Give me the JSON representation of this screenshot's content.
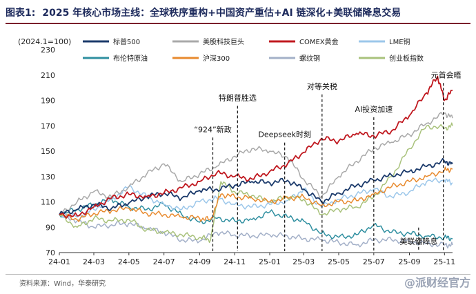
{
  "header": {
    "label": "图表1:",
    "title": "2025 年核心市场主线：全球秩序重构+中国资产重估+AI 链深化+美联储降息交易"
  },
  "source": "资料来源：Wind，华泰研究",
  "watermark": "@派财经官方",
  "chart_data": {
    "type": "line",
    "ylabel": "(2024.1=100)",
    "ylim": [
      70,
      230
    ],
    "yticks": [
      70,
      90,
      110,
      130,
      150,
      170,
      190,
      210,
      230
    ],
    "xlim": [
      "2024-01-01",
      "2025-11-15"
    ],
    "xticks": [
      {
        "label": "24-01",
        "date": "2024-01-01"
      },
      {
        "label": "24-03",
        "date": "2024-03-01"
      },
      {
        "label": "24-05",
        "date": "2024-05-01"
      },
      {
        "label": "24-07",
        "date": "2024-07-01"
      },
      {
        "label": "24-09",
        "date": "2024-09-01"
      },
      {
        "label": "24-11",
        "date": "2024-11-01"
      },
      {
        "label": "25-01",
        "date": "2025-01-01"
      },
      {
        "label": "25-03",
        "date": "2025-03-01"
      },
      {
        "label": "25-05",
        "date": "2025-05-01"
      },
      {
        "label": "25-07",
        "date": "2025-07-01"
      },
      {
        "label": "25-09",
        "date": "2025-09-01"
      },
      {
        "label": "25-11",
        "date": "2025-11-01"
      }
    ],
    "series": [
      {
        "name": "标普500",
        "color": "#1b3a6b",
        "x": [
          "2024-01-01",
          "2024-02-01",
          "2024-03-01",
          "2024-04-01",
          "2024-05-01",
          "2024-06-01",
          "2024-07-01",
          "2024-08-01",
          "2024-09-01",
          "2024-10-01",
          "2024-11-01",
          "2024-12-01",
          "2025-01-01",
          "2025-02-01",
          "2025-03-01",
          "2025-04-01",
          "2025-05-01",
          "2025-06-01",
          "2025-07-01",
          "2025-08-01",
          "2025-09-01",
          "2025-10-01",
          "2025-11-01",
          "2025-11-15"
        ],
        "values": [
          100,
          104,
          108,
          105,
          109,
          114,
          117,
          113,
          119,
          120,
          123,
          126,
          125,
          127,
          120,
          110,
          117,
          123,
          127,
          131,
          134,
          138,
          142,
          140
        ]
      },
      {
        "name": "美股科技巨头",
        "color": "#a9a9a9",
        "x": [
          "2024-01-01",
          "2024-02-01",
          "2024-03-01",
          "2024-04-01",
          "2024-05-01",
          "2024-06-01",
          "2024-07-01",
          "2024-08-01",
          "2024-09-01",
          "2024-10-01",
          "2024-11-01",
          "2024-12-01",
          "2025-01-01",
          "2025-02-01",
          "2025-03-01",
          "2025-04-01",
          "2025-05-01",
          "2025-06-01",
          "2025-07-01",
          "2025-08-01",
          "2025-09-01",
          "2025-10-01",
          "2025-11-01",
          "2025-11-15"
        ],
        "values": [
          100,
          110,
          118,
          114,
          122,
          132,
          140,
          126,
          132,
          138,
          146,
          152,
          150,
          145,
          128,
          114,
          130,
          142,
          152,
          157,
          163,
          172,
          180,
          176
        ]
      },
      {
        "name": "COMEX黄金",
        "color": "#c0181f",
        "x": [
          "2024-01-01",
          "2024-02-01",
          "2024-03-01",
          "2024-04-01",
          "2024-05-01",
          "2024-06-01",
          "2024-07-01",
          "2024-08-01",
          "2024-09-01",
          "2024-10-01",
          "2024-11-01",
          "2024-12-01",
          "2025-01-01",
          "2025-02-01",
          "2025-03-01",
          "2025-04-01",
          "2025-05-01",
          "2025-06-01",
          "2025-07-01",
          "2025-08-01",
          "2025-09-01",
          "2025-10-01",
          "2025-10-20",
          "2025-11-01",
          "2025-11-15"
        ],
        "values": [
          100,
          99,
          106,
          113,
          116,
          114,
          117,
          121,
          126,
          133,
          130,
          128,
          134,
          140,
          149,
          160,
          158,
          164,
          162,
          166,
          178,
          196,
          209,
          190,
          198
        ]
      },
      {
        "name": "LME铜",
        "color": "#9cc7ea",
        "x": [
          "2024-01-01",
          "2024-02-01",
          "2024-03-01",
          "2024-04-01",
          "2024-05-01",
          "2024-06-01",
          "2024-07-01",
          "2024-08-01",
          "2024-09-01",
          "2024-10-01",
          "2024-11-01",
          "2024-12-01",
          "2025-01-01",
          "2025-02-01",
          "2025-03-01",
          "2025-04-01",
          "2025-05-01",
          "2025-06-01",
          "2025-07-01",
          "2025-08-01",
          "2025-09-01",
          "2025-10-01",
          "2025-11-01",
          "2025-11-15"
        ],
        "values": [
          100,
          98,
          104,
          112,
          122,
          114,
          108,
          104,
          110,
          113,
          108,
          106,
          108,
          111,
          120,
          106,
          112,
          116,
          120,
          114,
          118,
          126,
          127,
          125
        ]
      },
      {
        "name": "布伦特原油",
        "color": "#2f8fa0",
        "x": [
          "2024-01-01",
          "2024-02-01",
          "2024-03-01",
          "2024-04-01",
          "2024-05-01",
          "2024-06-01",
          "2024-07-01",
          "2024-08-01",
          "2024-09-01",
          "2024-10-01",
          "2024-11-01",
          "2024-12-01",
          "2025-01-01",
          "2025-02-01",
          "2025-03-01",
          "2025-04-01",
          "2025-05-01",
          "2025-06-01",
          "2025-07-01",
          "2025-08-01",
          "2025-09-01",
          "2025-10-01",
          "2025-11-01",
          "2025-11-15"
        ],
        "values": [
          100,
          104,
          108,
          112,
          106,
          104,
          108,
          100,
          94,
          97,
          95,
          96,
          102,
          98,
          95,
          85,
          82,
          84,
          92,
          86,
          85,
          83,
          82,
          81
        ]
      },
      {
        "name": "沪深300",
        "color": "#e88a2e",
        "x": [
          "2024-01-01",
          "2024-02-01",
          "2024-03-01",
          "2024-04-01",
          "2024-05-01",
          "2024-06-01",
          "2024-07-01",
          "2024-08-01",
          "2024-09-01",
          "2024-09-20",
          "2024-10-08",
          "2024-11-01",
          "2024-12-01",
          "2025-01-01",
          "2025-02-01",
          "2025-03-01",
          "2025-04-01",
          "2025-05-01",
          "2025-06-01",
          "2025-07-01",
          "2025-08-01",
          "2025-09-01",
          "2025-10-01",
          "2025-11-01",
          "2025-11-15"
        ],
        "values": [
          100,
          96,
          101,
          103,
          105,
          101,
          100,
          98,
          97,
          96,
          116,
          114,
          113,
          110,
          113,
          114,
          107,
          110,
          111,
          116,
          122,
          126,
          130,
          135,
          136
        ]
      },
      {
        "name": "螺纹钢",
        "color": "#a3b0c8",
        "x": [
          "2024-01-01",
          "2024-02-01",
          "2024-03-01",
          "2024-04-01",
          "2024-05-01",
          "2024-06-01",
          "2024-07-01",
          "2024-08-01",
          "2024-09-01",
          "2024-10-01",
          "2024-11-01",
          "2024-12-01",
          "2025-01-01",
          "2025-02-01",
          "2025-03-01",
          "2025-04-01",
          "2025-05-01",
          "2025-06-01",
          "2025-07-01",
          "2025-08-01",
          "2025-09-01",
          "2025-10-01",
          "2025-11-01",
          "2025-11-15"
        ],
        "values": [
          100,
          95,
          90,
          92,
          93,
          89,
          86,
          80,
          79,
          86,
          84,
          83,
          84,
          83,
          81,
          80,
          78,
          76,
          80,
          80,
          79,
          77,
          76,
          76
        ]
      },
      {
        "name": "创业板指数",
        "color": "#a9c27c",
        "x": [
          "2024-01-01",
          "2024-02-01",
          "2024-03-01",
          "2024-04-01",
          "2024-05-01",
          "2024-06-01",
          "2024-07-01",
          "2024-08-01",
          "2024-09-01",
          "2024-09-20",
          "2024-10-08",
          "2024-11-01",
          "2024-12-01",
          "2025-01-01",
          "2025-02-01",
          "2025-03-01",
          "2025-04-01",
          "2025-05-01",
          "2025-06-01",
          "2025-07-01",
          "2025-08-01",
          "2025-09-01",
          "2025-10-01",
          "2025-11-01",
          "2025-11-15"
        ],
        "values": [
          100,
          90,
          97,
          95,
          96,
          88,
          86,
          84,
          82,
          80,
          126,
          118,
          115,
          110,
          114,
          112,
          100,
          104,
          106,
          114,
          130,
          152,
          170,
          168,
          170
        ]
      }
    ],
    "annotations": [
      {
        "text": "“924”新政",
        "date": "2024-09-24",
        "y": 164
      },
      {
        "text": "特朗普胜选",
        "date": "2024-11-06",
        "y": 189
      },
      {
        "text": "Deepseek时刻",
        "date": "2025-01-27",
        "y": 160
      },
      {
        "text": "对等关税",
        "date": "2025-04-02",
        "y": 198
      },
      {
        "text": "AI投资加速",
        "date": "2025-07-01",
        "y": 180
      },
      {
        "text": "美联储降息",
        "date": "2025-09-17",
        "y": 93
      },
      {
        "text": "元首会晤",
        "date": "2025-10-30",
        "y": 207
      }
    ]
  }
}
